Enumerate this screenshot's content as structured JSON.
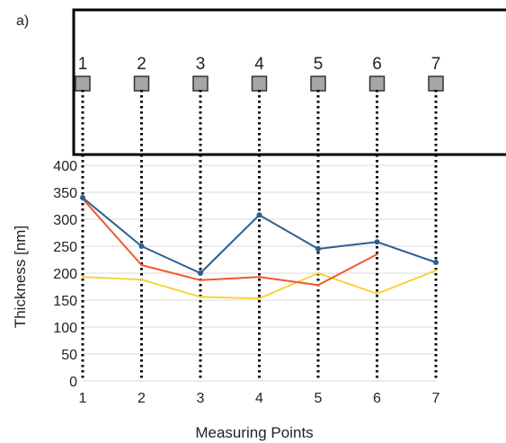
{
  "panel_label": "a)",
  "sample_diagram": {
    "point_labels": [
      "1",
      "2",
      "3",
      "4",
      "5",
      "6",
      "7"
    ],
    "marker_color": "#a6a6a6"
  },
  "chart_data": {
    "type": "line",
    "title": "",
    "xlabel": "Measuring Points",
    "ylabel": "Thickness [nm]",
    "x": [
      1,
      2,
      3,
      4,
      5,
      6,
      7
    ],
    "xticks": [
      "1",
      "2",
      "3",
      "4",
      "5",
      "6",
      "7"
    ],
    "yticks": [
      "0",
      "50",
      "100",
      "150",
      "200",
      "250",
      "300",
      "350",
      "400"
    ],
    "ylim": [
      0,
      400
    ],
    "grid": "horizontal",
    "series": [
      {
        "color": "#2b5f91",
        "markers": true,
        "values": [
          340,
          250,
          200,
          308,
          245,
          258,
          220
        ]
      },
      {
        "color": "#f2572b",
        "markers": false,
        "values": [
          338,
          215,
          187,
          193,
          178,
          235,
          null
        ]
      },
      {
        "color": "#f7d23a",
        "markers": false,
        "values": [
          193,
          188,
          156,
          153,
          200,
          162,
          205
        ]
      }
    ]
  }
}
